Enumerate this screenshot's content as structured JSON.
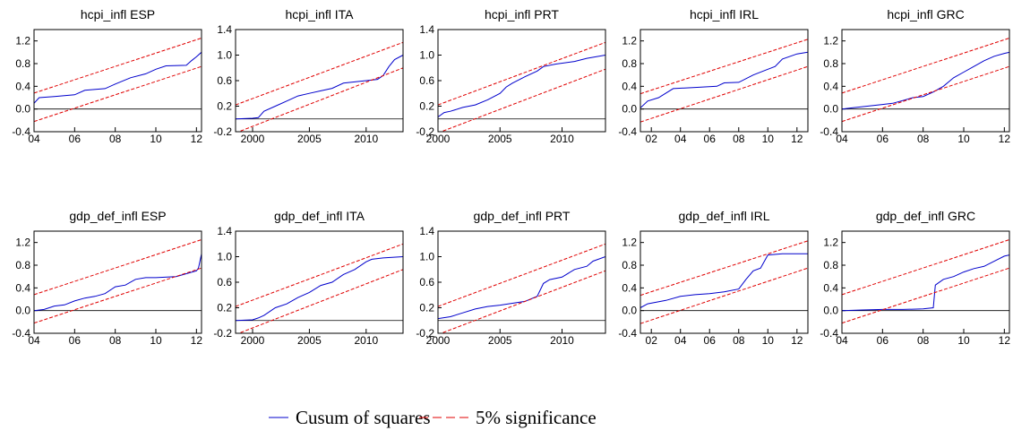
{
  "chart_data": [
    {
      "type": "line",
      "title": "hcpi_infl ESP",
      "xlim": [
        2004,
        2012.25
      ],
      "ylim": [
        -0.4,
        1.4
      ],
      "xticks": [
        {
          "value": 2004,
          "label": "04"
        },
        {
          "value": 2006,
          "label": "06"
        },
        {
          "value": 2008,
          "label": "08"
        },
        {
          "value": 2010,
          "label": "10"
        },
        {
          "value": 2012,
          "label": "12"
        }
      ],
      "yticks": [
        -0.4,
        {
          "value": 0,
          "label": "0.0"
        },
        0.4,
        0.8,
        1.2
      ],
      "hline": 0,
      "series": [
        {
          "color": "#0000cc",
          "x": [
            2004,
            2004.25,
            2005,
            2006,
            2006.5,
            2007.5,
            2008,
            2008.75,
            2009.5,
            2010,
            2010.5,
            2011.5,
            2011.75,
            2012,
            2012.25
          ],
          "values": [
            0.1,
            0.2,
            0.22,
            0.25,
            0.33,
            0.36,
            0.44,
            0.55,
            0.62,
            0.7,
            0.76,
            0.77,
            0.85,
            0.92,
            1.0
          ]
        },
        {
          "color": "#e00000",
          "dashed": true,
          "x": [
            2004,
            2012.25
          ],
          "values": [
            0.28,
            1.25
          ]
        },
        {
          "color": "#e00000",
          "dashed": true,
          "x": [
            2004,
            2012.25
          ],
          "values": [
            -0.22,
            0.75
          ]
        }
      ]
    },
    {
      "type": "line",
      "title": "hcpi_infl ITA",
      "xlim": [
        1998.5,
        2013.25
      ],
      "ylim": [
        -0.2,
        1.4
      ],
      "xticks": [
        2000,
        2005,
        2010
      ],
      "yticks": [
        -0.2,
        0.2,
        0.6,
        {
          "value": 1,
          "label": "1.0"
        },
        1.4
      ],
      "hline": 0,
      "series": [
        {
          "color": "#0000cc",
          "x": [
            1998.5,
            2000,
            2000.5,
            2001,
            2002,
            2003,
            2004,
            2005,
            2006,
            2007,
            2008,
            2009,
            2010,
            2011,
            2011.5,
            2012,
            2012.5,
            2013.25
          ],
          "values": [
            0,
            0.01,
            0.02,
            0.12,
            0.2,
            0.28,
            0.36,
            0.4,
            0.44,
            0.48,
            0.56,
            0.58,
            0.6,
            0.62,
            0.68,
            0.82,
            0.93,
            1.0
          ]
        },
        {
          "color": "#e00000",
          "dashed": true,
          "x": [
            1998.5,
            2013.25
          ],
          "values": [
            0.22,
            1.2
          ]
        },
        {
          "color": "#e00000",
          "dashed": true,
          "x": [
            1998.5,
            2013.25
          ],
          "values": [
            -0.22,
            0.8
          ]
        }
      ]
    },
    {
      "type": "line",
      "title": "hcpi_infl PRT",
      "xlim": [
        2000,
        2013.5
      ],
      "ylim": [
        -0.2,
        1.4
      ],
      "xticks": [
        2000,
        2005,
        2010
      ],
      "yticks": [
        -0.2,
        0.2,
        0.6,
        {
          "value": 1,
          "label": "1.0"
        },
        1.4
      ],
      "hline": 0,
      "series": [
        {
          "color": "#0000cc",
          "x": [
            2000,
            2000.5,
            2001,
            2002,
            2003,
            2004,
            2005,
            2005.5,
            2006,
            2007,
            2008,
            2008.5,
            2009.5,
            2011,
            2012,
            2013.5
          ],
          "values": [
            0.03,
            0.1,
            0.12,
            0.18,
            0.22,
            0.3,
            0.4,
            0.5,
            0.56,
            0.66,
            0.75,
            0.82,
            0.86,
            0.9,
            0.95,
            1.0
          ]
        },
        {
          "color": "#e00000",
          "dashed": true,
          "x": [
            2000,
            2013.5
          ],
          "values": [
            0.22,
            1.2
          ]
        },
        {
          "color": "#e00000",
          "dashed": true,
          "x": [
            2000,
            2013.5
          ],
          "values": [
            -0.22,
            0.78
          ]
        }
      ]
    },
    {
      "type": "line",
      "title": "hcpi_infl IRL",
      "xlim": [
        2001.25,
        2012.75
      ],
      "ylim": [
        -0.4,
        1.4
      ],
      "xticks": [
        {
          "value": 2002,
          "label": "02"
        },
        {
          "value": 2004,
          "label": "04"
        },
        {
          "value": 2006,
          "label": "06"
        },
        {
          "value": 2008,
          "label": "08"
        },
        {
          "value": 2010,
          "label": "10"
        },
        {
          "value": 2012,
          "label": "12"
        }
      ],
      "yticks": [
        -0.4,
        {
          "value": 0,
          "label": "0.0"
        },
        0.4,
        0.8,
        1.2
      ],
      "hline": 0,
      "series": [
        {
          "color": "#0000cc",
          "x": [
            2001.25,
            2001.75,
            2002.5,
            2003.5,
            2005,
            2006.5,
            2007,
            2008,
            2009,
            2010,
            2010.5,
            2011,
            2012,
            2012.75
          ],
          "values": [
            0.02,
            0.14,
            0.2,
            0.36,
            0.38,
            0.4,
            0.46,
            0.47,
            0.6,
            0.7,
            0.75,
            0.88,
            0.97,
            1.0
          ]
        },
        {
          "color": "#e00000",
          "dashed": true,
          "x": [
            2001.25,
            2012.75
          ],
          "values": [
            0.27,
            1.23
          ]
        },
        {
          "color": "#e00000",
          "dashed": true,
          "x": [
            2001.25,
            2012.75
          ],
          "values": [
            -0.23,
            0.75
          ]
        }
      ]
    },
    {
      "type": "line",
      "title": "hcpi_infl GRC",
      "xlim": [
        2004,
        2012.25
      ],
      "ylim": [
        -0.4,
        1.4
      ],
      "xticks": [
        {
          "value": 2004,
          "label": "04"
        },
        {
          "value": 2006,
          "label": "06"
        },
        {
          "value": 2008,
          "label": "08"
        },
        {
          "value": 2010,
          "label": "10"
        },
        {
          "value": 2012,
          "label": "12"
        }
      ],
      "yticks": [
        -0.4,
        {
          "value": 0,
          "label": "0.0"
        },
        0.4,
        0.8,
        1.2
      ],
      "hline": 0,
      "series": [
        {
          "color": "#0000cc",
          "x": [
            2004,
            2004.5,
            2005,
            2006,
            2006.5,
            2007,
            2007.5,
            2008,
            2008.5,
            2009,
            2009.5,
            2010,
            2010.5,
            2011,
            2011.5,
            2012,
            2012.25
          ],
          "values": [
            0,
            0.02,
            0.04,
            0.08,
            0.1,
            0.15,
            0.2,
            0.22,
            0.3,
            0.4,
            0.55,
            0.65,
            0.75,
            0.85,
            0.93,
            0.98,
            1.0
          ]
        },
        {
          "color": "#e00000",
          "dashed": true,
          "x": [
            2004,
            2012.25
          ],
          "values": [
            0.28,
            1.25
          ]
        },
        {
          "color": "#e00000",
          "dashed": true,
          "x": [
            2004,
            2012.25
          ],
          "values": [
            -0.22,
            0.75
          ]
        }
      ]
    },
    {
      "type": "line",
      "title": "gdp_def_infl ESP",
      "xlim": [
        2004,
        2012.25
      ],
      "ylim": [
        -0.4,
        1.4
      ],
      "xticks": [
        {
          "value": 2004,
          "label": "04"
        },
        {
          "value": 2006,
          "label": "06"
        },
        {
          "value": 2008,
          "label": "08"
        },
        {
          "value": 2010,
          "label": "10"
        },
        {
          "value": 2012,
          "label": "12"
        }
      ],
      "yticks": [
        -0.4,
        {
          "value": 0,
          "label": "0.0"
        },
        0.4,
        0.8,
        1.2
      ],
      "hline": 0,
      "series": [
        {
          "color": "#0000cc",
          "x": [
            2004,
            2004.5,
            2005,
            2005.5,
            2006,
            2006.5,
            2007,
            2007.5,
            2008,
            2008.5,
            2009,
            2009.5,
            2010,
            2011,
            2011.5,
            2012,
            2012.1,
            2012.25
          ],
          "values": [
            0,
            0.02,
            0.08,
            0.1,
            0.17,
            0.22,
            0.25,
            0.3,
            0.42,
            0.45,
            0.55,
            0.58,
            0.58,
            0.6,
            0.65,
            0.7,
            0.75,
            1.0
          ]
        },
        {
          "color": "#e00000",
          "dashed": true,
          "x": [
            2004,
            2012.25
          ],
          "values": [
            0.28,
            1.25
          ]
        },
        {
          "color": "#e00000",
          "dashed": true,
          "x": [
            2004,
            2012.25
          ],
          "values": [
            -0.22,
            0.75
          ]
        }
      ]
    },
    {
      "type": "line",
      "title": "gdp_def_infl ITA",
      "xlim": [
        1998.5,
        2013.25
      ],
      "ylim": [
        -0.2,
        1.4
      ],
      "xticks": [
        2000,
        2005,
        2010
      ],
      "yticks": [
        -0.2,
        0.2,
        0.6,
        {
          "value": 1,
          "label": "1.0"
        },
        1.4
      ],
      "hline": 0,
      "series": [
        {
          "color": "#0000cc",
          "x": [
            1998.5,
            2000,
            2000.5,
            2001,
            2002,
            2003,
            2004,
            2005,
            2006,
            2007,
            2008,
            2009,
            2010,
            2010.5,
            2011.5,
            2013.25
          ],
          "values": [
            0,
            0.01,
            0.04,
            0.08,
            0.2,
            0.26,
            0.36,
            0.44,
            0.55,
            0.6,
            0.72,
            0.8,
            0.92,
            0.96,
            0.98,
            1.0
          ]
        },
        {
          "color": "#e00000",
          "dashed": true,
          "x": [
            1998.5,
            2013.25
          ],
          "values": [
            0.22,
            1.2
          ]
        },
        {
          "color": "#e00000",
          "dashed": true,
          "x": [
            1998.5,
            2013.25
          ],
          "values": [
            -0.22,
            0.8
          ]
        }
      ]
    },
    {
      "type": "line",
      "title": "gdp_def_infl PRT",
      "xlim": [
        2000,
        2013.5
      ],
      "ylim": [
        -0.2,
        1.4
      ],
      "xticks": [
        2000,
        2005,
        2010
      ],
      "yticks": [
        -0.2,
        0.2,
        0.6,
        {
          "value": 1,
          "label": "1.0"
        },
        1.4
      ],
      "hline": 0,
      "series": [
        {
          "color": "#0000cc",
          "x": [
            2000,
            2001,
            2002,
            2003,
            2004,
            2005,
            2006,
            2007,
            2008,
            2008.5,
            2009,
            2010,
            2011,
            2012,
            2012.5,
            2013.5
          ],
          "values": [
            0.03,
            0.06,
            0.12,
            0.18,
            0.22,
            0.24,
            0.27,
            0.3,
            0.38,
            0.58,
            0.64,
            0.68,
            0.8,
            0.85,
            0.93,
            1.0
          ]
        },
        {
          "color": "#e00000",
          "dashed": true,
          "x": [
            2000,
            2013.5
          ],
          "values": [
            0.22,
            1.2
          ]
        },
        {
          "color": "#e00000",
          "dashed": true,
          "x": [
            2000,
            2013.5
          ],
          "values": [
            -0.22,
            0.78
          ]
        }
      ]
    },
    {
      "type": "line",
      "title": "gdp_def_infl IRL",
      "xlim": [
        2001.25,
        2012.75
      ],
      "ylim": [
        -0.4,
        1.4
      ],
      "xticks": [
        {
          "value": 2002,
          "label": "02"
        },
        {
          "value": 2004,
          "label": "04"
        },
        {
          "value": 2006,
          "label": "06"
        },
        {
          "value": 2008,
          "label": "08"
        },
        {
          "value": 2010,
          "label": "10"
        },
        {
          "value": 2012,
          "label": "12"
        }
      ],
      "yticks": [
        -0.4,
        {
          "value": 0,
          "label": "0.0"
        },
        0.4,
        0.8,
        1.2
      ],
      "hline": 0,
      "series": [
        {
          "color": "#0000cc",
          "x": [
            2001.25,
            2001.75,
            2003,
            2004,
            2005,
            2006,
            2007,
            2008,
            2008.5,
            2009,
            2009.5,
            2010,
            2011,
            2012.75
          ],
          "values": [
            0.05,
            0.12,
            0.18,
            0.25,
            0.28,
            0.3,
            0.33,
            0.38,
            0.55,
            0.7,
            0.75,
            0.98,
            1.0,
            1.0
          ]
        },
        {
          "color": "#e00000",
          "dashed": true,
          "x": [
            2001.25,
            2012.75
          ],
          "values": [
            0.27,
            1.23
          ]
        },
        {
          "color": "#e00000",
          "dashed": true,
          "x": [
            2001.25,
            2012.75
          ],
          "values": [
            -0.23,
            0.75
          ]
        }
      ]
    },
    {
      "type": "line",
      "title": "gdp_def_infl GRC",
      "xlim": [
        2004,
        2012.25
      ],
      "ylim": [
        -0.4,
        1.4
      ],
      "xticks": [
        {
          "value": 2004,
          "label": "04"
        },
        {
          "value": 2006,
          "label": "06"
        },
        {
          "value": 2008,
          "label": "08"
        },
        {
          "value": 2010,
          "label": "10"
        },
        {
          "value": 2012,
          "label": "12"
        }
      ],
      "yticks": [
        -0.4,
        {
          "value": 0,
          "label": "0.0"
        },
        0.4,
        0.8,
        1.2
      ],
      "hline": 0,
      "series": [
        {
          "color": "#0000cc",
          "x": [
            2004,
            2005,
            2006,
            2007,
            2008,
            2008.5,
            2008.6,
            2009,
            2009.5,
            2010,
            2010.5,
            2011,
            2011.5,
            2012,
            2012.25
          ],
          "values": [
            0,
            0.01,
            0.02,
            0.02,
            0.03,
            0.05,
            0.45,
            0.55,
            0.6,
            0.68,
            0.74,
            0.78,
            0.87,
            0.96,
            0.98
          ]
        },
        {
          "color": "#e00000",
          "dashed": true,
          "x": [
            2004,
            2012.25
          ],
          "values": [
            0.28,
            1.25
          ]
        },
        {
          "color": "#e00000",
          "dashed": true,
          "x": [
            2004,
            2012.25
          ],
          "values": [
            -0.22,
            0.75
          ]
        }
      ]
    }
  ],
  "legend": [
    {
      "name": "Cusum of squares",
      "color": "#0000cc"
    },
    {
      "name": "5% significance",
      "color": "#e00000",
      "dashed": true
    }
  ]
}
